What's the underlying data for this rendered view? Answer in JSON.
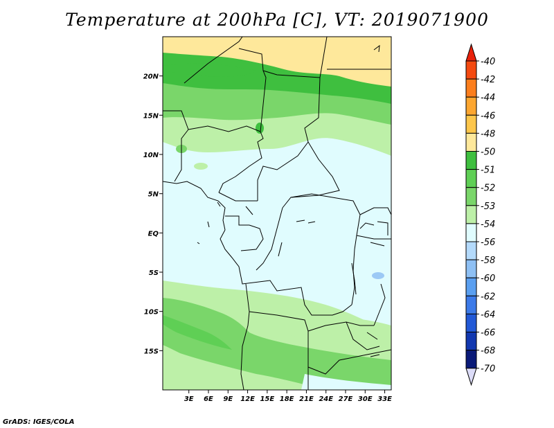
{
  "header": {
    "title": "Temperature at 200hPa [C], VT: 2019071900"
  },
  "footer": {
    "credit": "GrADS: IGES/COLA"
  },
  "map": {
    "lon_range": [
      -1,
      34
    ],
    "lat_range": [
      -20,
      25
    ],
    "lat_ticks": [
      {
        "value": 20,
        "label": "20N"
      },
      {
        "value": 15,
        "label": "15N"
      },
      {
        "value": 10,
        "label": "10N"
      },
      {
        "value": 5,
        "label": "5N"
      },
      {
        "value": 0,
        "label": "EQ"
      },
      {
        "value": -5,
        "label": "5S"
      },
      {
        "value": -10,
        "label": "10S"
      },
      {
        "value": -15,
        "label": "15S"
      }
    ],
    "lon_ticks": [
      {
        "value": 3,
        "label": "3E"
      },
      {
        "value": 6,
        "label": "6E"
      },
      {
        "value": 9,
        "label": "9E"
      },
      {
        "value": 12,
        "label": "12E"
      },
      {
        "value": 15,
        "label": "15E"
      },
      {
        "value": 18,
        "label": "18E"
      },
      {
        "value": 21,
        "label": "21E"
      },
      {
        "value": 24,
        "label": "24E"
      },
      {
        "value": 27,
        "label": "27E"
      },
      {
        "value": 30,
        "label": "30E"
      },
      {
        "value": 33,
        "label": "33E"
      }
    ],
    "colors": {
      "warm_yellow": "#fee89b",
      "band_dark_green": "#3fbf3f",
      "band_green": "#7ad66a",
      "band_light_green": "#bdf0a8",
      "background_pale": "#e0fcfe",
      "spot_blue": "#9cc9f5",
      "border": "#000000"
    }
  },
  "colorbar": {
    "levels": [
      {
        "label": "-40",
        "color": "#e8210b"
      },
      {
        "label": "-42",
        "color": "#f44a10"
      },
      {
        "label": "-44",
        "color": "#fb7e1d"
      },
      {
        "label": "-46",
        "color": "#fca630"
      },
      {
        "label": "-48",
        "color": "#fdc64b"
      },
      {
        "label": "-50",
        "color": "#fee89b"
      },
      {
        "label": "-51",
        "color": "#3fbf3f"
      },
      {
        "label": "-52",
        "color": "#5fcf55"
      },
      {
        "label": "-53",
        "color": "#7ad66a"
      },
      {
        "label": "-54",
        "color": "#bdf0a8"
      },
      {
        "label": "-56",
        "color": "#e0fcfe"
      },
      {
        "label": "-58",
        "color": "#b4dafb"
      },
      {
        "label": "-60",
        "color": "#8ec0f4"
      },
      {
        "label": "-62",
        "color": "#5a9ff0"
      },
      {
        "label": "-64",
        "color": "#3c7ae8"
      },
      {
        "label": "-66",
        "color": "#2259d6"
      },
      {
        "label": "-68",
        "color": "#1238b0"
      },
      {
        "label": "-70",
        "color": "#0a1a78"
      }
    ],
    "top_arrow_color": "#e8210b",
    "bottom_arrow_color": "#dcdcf8"
  }
}
